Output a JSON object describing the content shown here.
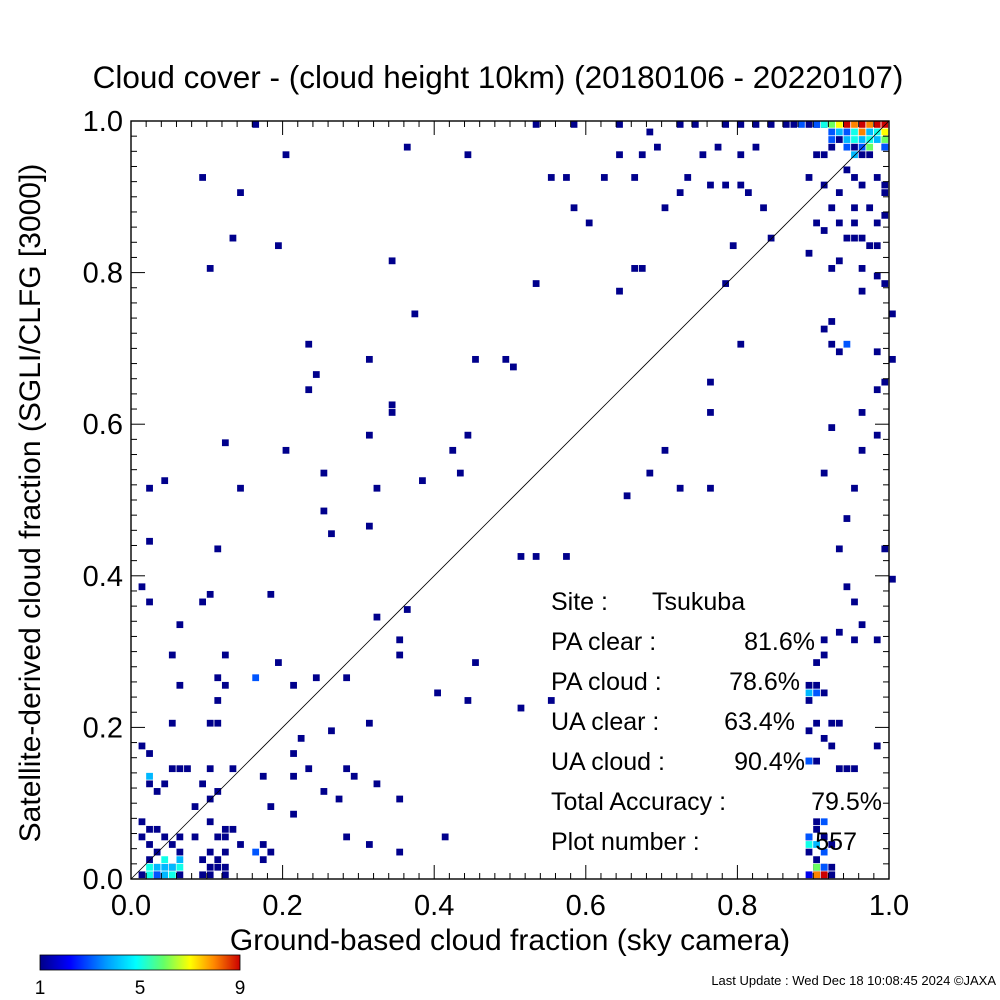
{
  "chart_data": {
    "type": "heatmap",
    "title": "Cloud cover - (cloud height 10km)  (20180106 - 20220107)",
    "xlabel": "Ground-based cloud fraction (sky camera)",
    "ylabel": "Satellite-derived cloud fraction (SGLI/CLFG [3000])",
    "xlim": [
      0.0,
      1.0
    ],
    "ylim": [
      0.0,
      1.0
    ],
    "x_ticks": [
      "0.0",
      "0.2",
      "0.4",
      "0.6",
      "0.8",
      "1.0"
    ],
    "y_ticks": [
      "0.0",
      "0.2",
      "0.4",
      "0.6",
      "0.8",
      "1.0"
    ],
    "reference_line": "y = x",
    "grid": false,
    "colorbar": {
      "min": 1,
      "max": 9,
      "tick_labels": [
        "1",
        "5",
        "9"
      ],
      "colormap": "rainbow (blue to red)"
    },
    "stats": [
      {
        "label": "Site :",
        "value": "Tsukuba"
      },
      {
        "label": "PA clear :",
        "value": "81.6%"
      },
      {
        "label": "PA cloud :",
        "value": "78.6%"
      },
      {
        "label": "UA clear :",
        "value": "63.4%"
      },
      {
        "label": "UA cloud :",
        "value": "90.4%"
      },
      {
        "label": "Total Accuracy :",
        "value": "79.5%"
      },
      {
        "label": "Plot number :",
        "value": "557"
      }
    ],
    "cell_size": 0.01,
    "points": [
      [
        0.16,
        0.99
      ],
      [
        0.36,
        0.96
      ],
      [
        0.44,
        0.95
      ],
      [
        0.2,
        0.95
      ],
      [
        0.09,
        0.92
      ],
      [
        0.14,
        0.9
      ],
      [
        0.55,
        0.92
      ],
      [
        0.57,
        0.92
      ],
      [
        0.62,
        0.92
      ],
      [
        0.66,
        0.92
      ],
      [
        0.73,
        0.92
      ],
      [
        0.76,
        0.91
      ],
      [
        0.78,
        0.91
      ],
      [
        0.8,
        0.91
      ],
      [
        0.81,
        0.9
      ],
      [
        0.72,
        0.9
      ],
      [
        0.7,
        0.88
      ],
      [
        0.58,
        0.88
      ],
      [
        0.6,
        0.86
      ],
      [
        0.83,
        0.88
      ],
      [
        0.13,
        0.84
      ],
      [
        0.19,
        0.83
      ],
      [
        0.34,
        0.81
      ],
      [
        0.1,
        0.8
      ],
      [
        0.67,
        0.8
      ],
      [
        0.53,
        0.78
      ],
      [
        0.66,
        0.8
      ],
      [
        0.64,
        0.77
      ],
      [
        0.78,
        0.78
      ],
      [
        0.37,
        0.74
      ],
      [
        0.84,
        0.84
      ],
      [
        0.79,
        0.83
      ],
      [
        0.23,
        0.7
      ],
      [
        0.31,
        0.68
      ],
      [
        0.24,
        0.66
      ],
      [
        0.23,
        0.64
      ],
      [
        0.45,
        0.68
      ],
      [
        0.49,
        0.68
      ],
      [
        0.5,
        0.67
      ],
      [
        0.8,
        0.7
      ],
      [
        0.76,
        0.65
      ],
      [
        0.34,
        0.62
      ],
      [
        0.34,
        0.61
      ],
      [
        0.76,
        0.61
      ],
      [
        0.31,
        0.58
      ],
      [
        0.44,
        0.58
      ],
      [
        0.12,
        0.57
      ],
      [
        0.2,
        0.56
      ],
      [
        0.42,
        0.56
      ],
      [
        0.7,
        0.56
      ],
      [
        0.25,
        0.53
      ],
      [
        0.43,
        0.53
      ],
      [
        0.68,
        0.53
      ],
      [
        0.38,
        0.52
      ],
      [
        0.04,
        0.52
      ],
      [
        0.02,
        0.51
      ],
      [
        0.14,
        0.51
      ],
      [
        0.32,
        0.51
      ],
      [
        0.72,
        0.51
      ],
      [
        0.76,
        0.51
      ],
      [
        0.65,
        0.5
      ],
      [
        0.25,
        0.48
      ],
      [
        0.31,
        0.46
      ],
      [
        0.26,
        0.45
      ],
      [
        0.02,
        0.44
      ],
      [
        0.11,
        0.43
      ],
      [
        0.51,
        0.42
      ],
      [
        0.53,
        0.42
      ],
      [
        0.57,
        0.42
      ],
      [
        0.01,
        0.38
      ],
      [
        0.1,
        0.37
      ],
      [
        0.18,
        0.37
      ],
      [
        0.02,
        0.36
      ],
      [
        0.09,
        0.36
      ],
      [
        0.36,
        0.35
      ],
      [
        0.32,
        0.34
      ],
      [
        0.06,
        0.33
      ],
      [
        0.35,
        0.31
      ],
      [
        0.35,
        0.29
      ],
      [
        0.05,
        0.29
      ],
      [
        0.12,
        0.29
      ],
      [
        0.19,
        0.28
      ],
      [
        0.45,
        0.28
      ],
      [
        0.11,
        0.26
      ],
      [
        0.24,
        0.26
      ],
      [
        0.28,
        0.26
      ],
      [
        0.06,
        0.25
      ],
      [
        0.12,
        0.25
      ],
      [
        0.21,
        0.25
      ],
      [
        0.4,
        0.24
      ],
      [
        0.44,
        0.23
      ],
      [
        0.51,
        0.22
      ],
      [
        0.55,
        0.23
      ],
      [
        0.11,
        0.23
      ],
      [
        0.05,
        0.2
      ],
      [
        0.1,
        0.2
      ],
      [
        0.11,
        0.2
      ],
      [
        0.31,
        0.2
      ],
      [
        0.26,
        0.19
      ],
      [
        0.22,
        0.18
      ],
      [
        0.01,
        0.17
      ],
      [
        0.02,
        0.16
      ],
      [
        0.21,
        0.16
      ],
      [
        0.13,
        0.14
      ],
      [
        0.05,
        0.14
      ],
      [
        0.06,
        0.14
      ],
      [
        0.07,
        0.14
      ],
      [
        0.1,
        0.14
      ],
      [
        0.17,
        0.13
      ],
      [
        0.23,
        0.14
      ],
      [
        0.28,
        0.14
      ],
      [
        0.29,
        0.13
      ],
      [
        0.02,
        0.12
      ],
      [
        0.03,
        0.11
      ],
      [
        0.04,
        0.12
      ],
      [
        0.09,
        0.12
      ],
      [
        0.11,
        0.11
      ],
      [
        0.21,
        0.13
      ],
      [
        0.25,
        0.11
      ],
      [
        0.32,
        0.12
      ],
      [
        0.1,
        0.1
      ],
      [
        0.18,
        0.09
      ],
      [
        0.27,
        0.1
      ],
      [
        0.08,
        0.09
      ],
      [
        0.21,
        0.08
      ],
      [
        0.1,
        0.07
      ],
      [
        0.12,
        0.06
      ],
      [
        0.13,
        0.06
      ],
      [
        0.01,
        0.07
      ],
      [
        0.35,
        0.1
      ],
      [
        0.02,
        0.06
      ],
      [
        0.03,
        0.06
      ],
      [
        0.01,
        0.05
      ],
      [
        0.04,
        0.05
      ],
      [
        0.06,
        0.05
      ],
      [
        0.08,
        0.05
      ],
      [
        0.11,
        0.05
      ],
      [
        0.12,
        0.05
      ],
      [
        0.14,
        0.04
      ],
      [
        0.17,
        0.04
      ],
      [
        0.41,
        0.05
      ],
      [
        0.28,
        0.05
      ],
      [
        0.31,
        0.04
      ],
      [
        0.35,
        0.03
      ],
      [
        0.18,
        0.03
      ],
      [
        0.02,
        0.04
      ],
      [
        0.05,
        0.04
      ],
      [
        0.03,
        0.03
      ],
      [
        0.06,
        0.03
      ],
      [
        0.1,
        0.03
      ],
      [
        0.11,
        0.02
      ],
      [
        0.12,
        0.03
      ],
      [
        0.17,
        0.02
      ],
      [
        0.02,
        0.02
      ],
      [
        0.05,
        0.01
      ],
      [
        0.09,
        0.02
      ],
      [
        0.1,
        0.01
      ],
      [
        0.11,
        0.01
      ],
      [
        0.12,
        0.01
      ],
      [
        0.09,
        0.0
      ],
      [
        0.1,
        0.0
      ],
      [
        0.01,
        0.0
      ],
      [
        0.03,
        0.0
      ],
      [
        0.06,
        0.0
      ],
      [
        0.12,
        0.0
      ],
      [
        0.53,
        0.99
      ],
      [
        0.58,
        0.99
      ],
      [
        0.64,
        0.99
      ],
      [
        0.68,
        0.98
      ],
      [
        0.72,
        0.99
      ],
      [
        0.74,
        0.99
      ],
      [
        0.78,
        0.99
      ],
      [
        0.8,
        0.99
      ],
      [
        0.82,
        0.99
      ],
      [
        0.84,
        0.99
      ],
      [
        0.86,
        0.99
      ],
      [
        0.87,
        0.99
      ],
      [
        0.89,
        0.99
      ],
      [
        0.9,
        0.99
      ],
      [
        0.91,
        0.99
      ],
      [
        0.69,
        0.96
      ],
      [
        0.67,
        0.95
      ],
      [
        0.64,
        0.95
      ],
      [
        0.75,
        0.95
      ],
      [
        0.77,
        0.96
      ],
      [
        0.8,
        0.95
      ],
      [
        0.82,
        0.96
      ],
      [
        0.9,
        0.95
      ],
      [
        0.91,
        0.95
      ],
      [
        0.92,
        0.96
      ],
      [
        0.93,
        0.97
      ],
      [
        0.95,
        0.96
      ],
      [
        0.96,
        0.95
      ],
      [
        0.99,
        0.96
      ],
      [
        0.97,
        0.95
      ],
      [
        0.94,
        0.93
      ],
      [
        0.95,
        0.92
      ],
      [
        0.96,
        0.91
      ],
      [
        0.98,
        0.92
      ],
      [
        0.99,
        0.91
      ],
      [
        0.89,
        0.92
      ],
      [
        0.91,
        0.91
      ],
      [
        0.93,
        0.9
      ],
      [
        0.99,
        0.9
      ],
      [
        0.92,
        0.88
      ],
      [
        0.95,
        0.88
      ],
      [
        0.97,
        0.88
      ],
      [
        0.99,
        0.87
      ],
      [
        0.93,
        0.86
      ],
      [
        0.95,
        0.86
      ],
      [
        0.98,
        0.86
      ],
      [
        0.9,
        0.86
      ],
      [
        0.91,
        0.85
      ],
      [
        0.94,
        0.84
      ],
      [
        0.95,
        0.84
      ],
      [
        0.96,
        0.84
      ],
      [
        0.97,
        0.83
      ],
      [
        0.98,
        0.83
      ],
      [
        0.89,
        0.82
      ],
      [
        0.93,
        0.81
      ],
      [
        0.92,
        0.8
      ],
      [
        0.96,
        0.8
      ],
      [
        0.98,
        0.79
      ],
      [
        0.99,
        0.78
      ],
      [
        0.96,
        0.77
      ],
      [
        1.0,
        0.74
      ],
      [
        0.92,
        0.73
      ],
      [
        0.91,
        0.72
      ],
      [
        0.92,
        0.7
      ],
      [
        0.93,
        0.69
      ],
      [
        0.98,
        0.69
      ],
      [
        1.0,
        0.68
      ],
      [
        0.99,
        0.65
      ],
      [
        0.98,
        0.64
      ],
      [
        0.96,
        0.61
      ],
      [
        0.92,
        0.59
      ],
      [
        0.98,
        0.58
      ],
      [
        0.96,
        0.56
      ],
      [
        0.91,
        0.53
      ],
      [
        0.95,
        0.51
      ],
      [
        0.94,
        0.47
      ],
      [
        0.93,
        0.43
      ],
      [
        0.99,
        0.43
      ],
      [
        1.0,
        0.39
      ],
      [
        0.94,
        0.38
      ],
      [
        0.95,
        0.36
      ],
      [
        0.96,
        0.33
      ],
      [
        0.93,
        0.32
      ],
      [
        0.95,
        0.31
      ],
      [
        0.98,
        0.31
      ],
      [
        0.91,
        0.31
      ],
      [
        0.91,
        0.29
      ],
      [
        0.9,
        0.28
      ],
      [
        0.89,
        0.25
      ],
      [
        0.9,
        0.25
      ],
      [
        0.91,
        0.24
      ],
      [
        0.89,
        0.23
      ],
      [
        0.9,
        0.2
      ],
      [
        0.92,
        0.2
      ],
      [
        0.93,
        0.2
      ],
      [
        0.89,
        0.19
      ],
      [
        0.91,
        0.18
      ],
      [
        0.92,
        0.17
      ],
      [
        0.98,
        0.17
      ],
      [
        0.89,
        0.15
      ],
      [
        0.9,
        0.15
      ],
      [
        0.93,
        0.14
      ],
      [
        0.94,
        0.14
      ],
      [
        0.95,
        0.14
      ],
      [
        0.9,
        0.07
      ],
      [
        0.9,
        0.06
      ],
      [
        0.89,
        0.05
      ],
      [
        0.91,
        0.05
      ],
      [
        0.92,
        0.04
      ],
      [
        0.89,
        0.03
      ],
      [
        0.9,
        0.02
      ],
      [
        0.9,
        0.01
      ],
      [
        0.91,
        0.01
      ],
      [
        0.92,
        0.01
      ],
      [
        0.91,
        0.0
      ],
      [
        0.92,
        0.0
      ],
      [
        0.9,
        0.0
      ],
      [
        0.05,
        0.01,
        4
      ],
      [
        0.04,
        0.02,
        5
      ],
      [
        0.03,
        0.01,
        4
      ],
      [
        0.02,
        0.0,
        5
      ],
      [
        0.03,
        0.0,
        3
      ],
      [
        0.04,
        0.01,
        4
      ],
      [
        0.06,
        0.02,
        4
      ],
      [
        0.05,
        0.0,
        5
      ],
      [
        0.02,
        0.01,
        5
      ],
      [
        0.06,
        0.01,
        5
      ],
      [
        0.04,
        0.0,
        4
      ],
      [
        0.16,
        0.26,
        3
      ],
      [
        0.16,
        0.03,
        3
      ],
      [
        0.02,
        0.13,
        4
      ],
      [
        0.91,
        0.07,
        3
      ],
      [
        0.89,
        0.05,
        3
      ],
      [
        0.9,
        0.04,
        4
      ],
      [
        0.89,
        0.04,
        5
      ],
      [
        0.91,
        0.03,
        3
      ],
      [
        0.89,
        0.0,
        2
      ],
      [
        0.9,
        0.01,
        6
      ],
      [
        0.91,
        0.01,
        3
      ],
      [
        0.9,
        0.0,
        8
      ],
      [
        0.91,
        0.0,
        9
      ],
      [
        0.94,
        0.7,
        3
      ],
      [
        0.89,
        0.24,
        4
      ],
      [
        0.9,
        0.24,
        3
      ],
      [
        0.89,
        0.15,
        3
      ],
      [
        0.95,
        0.97,
        5
      ],
      [
        0.97,
        0.96,
        6
      ],
      [
        0.96,
        0.97,
        4
      ],
      [
        0.98,
        0.98,
        5
      ],
      [
        0.99,
        0.98,
        7
      ],
      [
        0.99,
        0.97,
        6
      ],
      [
        0.98,
        0.97,
        4
      ],
      [
        0.97,
        0.98,
        4
      ],
      [
        0.96,
        0.98,
        8
      ],
      [
        0.95,
        0.98,
        5
      ],
      [
        0.94,
        0.98,
        3
      ],
      [
        0.93,
        0.98,
        4
      ],
      [
        0.92,
        0.98,
        3
      ],
      [
        0.93,
        0.99,
        7
      ],
      [
        0.94,
        0.99,
        9
      ],
      [
        0.95,
        0.99,
        8
      ],
      [
        0.96,
        0.99,
        9
      ],
      [
        0.97,
        0.99,
        8
      ],
      [
        0.98,
        0.99,
        9
      ],
      [
        0.99,
        0.99,
        9
      ],
      [
        0.92,
        0.99,
        6
      ],
      [
        0.91,
        0.99,
        5
      ],
      [
        0.9,
        0.99,
        3
      ],
      [
        0.88,
        0.99,
        3
      ],
      [
        0.99,
        0.96,
        3
      ],
      [
        0.95,
        0.95,
        4
      ],
      [
        0.94,
        0.96,
        3
      ],
      [
        0.97,
        0.97,
        5
      ],
      [
        0.96,
        0.96,
        3
      ],
      [
        0.92,
        0.97,
        3
      ],
      [
        0.94,
        0.97,
        4
      ]
    ]
  },
  "footer": {
    "update_text": "Last Update : Wed Dec 18 10:08:45 2024  ©JAXA"
  }
}
